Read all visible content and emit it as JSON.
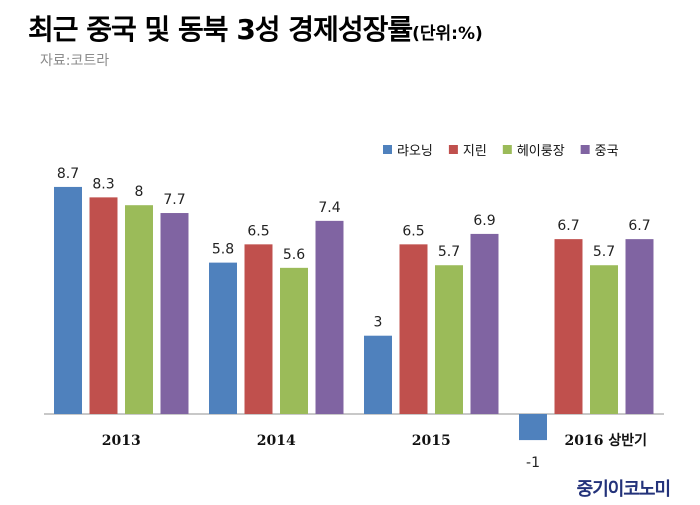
{
  "header": {
    "title": "최근 중국 및 동북 3성 경제성장률",
    "unit": "(단위:%)",
    "source": "자료:코트라"
  },
  "brand": "중기이코노미",
  "chart_data": {
    "type": "bar",
    "categories": [
      "2013",
      "2014",
      "2015",
      "2016 상반기"
    ],
    "series": [
      {
        "name": "랴오닝",
        "color": "#4f81bd",
        "values": [
          8.7,
          5.8,
          3,
          -1
        ]
      },
      {
        "name": "지린",
        "color": "#c0504d",
        "values": [
          8.3,
          6.5,
          6.5,
          6.7
        ]
      },
      {
        "name": "헤이룽장",
        "color": "#9bbb59",
        "values": [
          8,
          5.6,
          5.7,
          5.7
        ]
      },
      {
        "name": "중국",
        "color": "#8064a2",
        "values": [
          7.7,
          7.4,
          6.9,
          6.7
        ]
      }
    ],
    "ylim": [
      -1,
      8.7
    ],
    "legend": "top-right",
    "grid": false,
    "data_labels": true
  }
}
